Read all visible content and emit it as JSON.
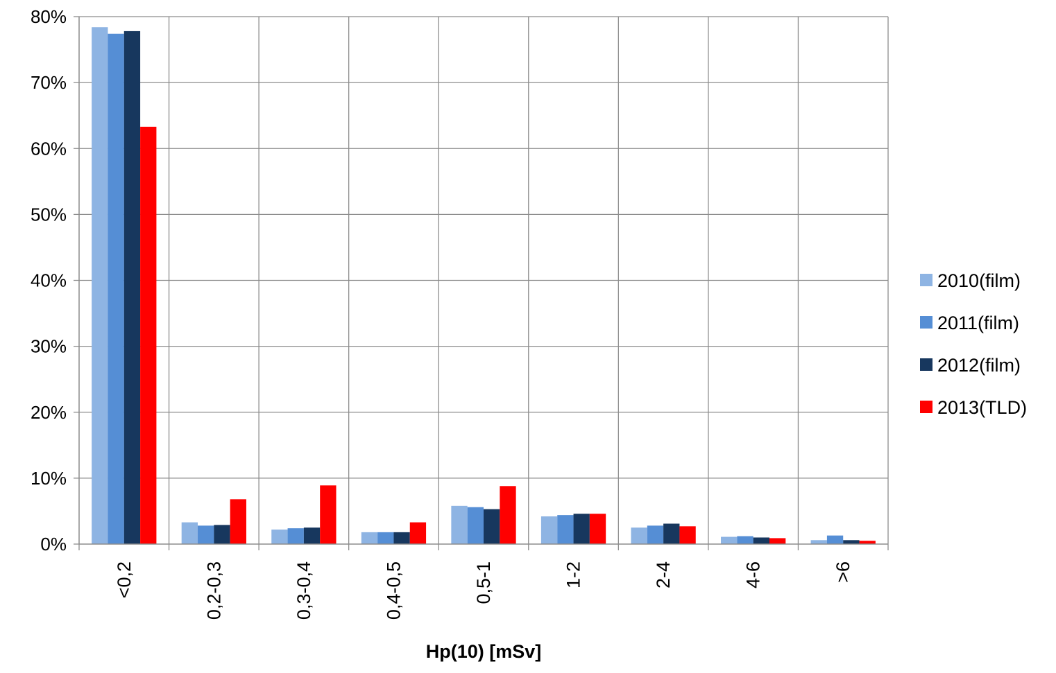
{
  "chart_data": {
    "type": "bar",
    "title": "",
    "xlabel": "Hp(10) [mSv]",
    "ylabel": "",
    "categories": [
      "<0,2",
      "0,2-0,3",
      "0,3-0,4",
      "0,4-0,5",
      "0,5-1",
      "1-2",
      "2-4",
      "4-6",
      ">6"
    ],
    "series": [
      {
        "name": "2010(film)",
        "color": "#8EB4E3",
        "values": [
          78.4,
          3.3,
          2.2,
          1.8,
          5.8,
          4.2,
          2.5,
          1.1,
          0.6
        ]
      },
      {
        "name": "2011(film)",
        "color": "#558ED5",
        "values": [
          77.4,
          2.8,
          2.4,
          1.8,
          5.6,
          4.4,
          2.8,
          1.2,
          1.3
        ]
      },
      {
        "name": "2012(film)",
        "color": "#17375E",
        "values": [
          77.8,
          2.9,
          2.5,
          1.8,
          5.3,
          4.6,
          3.1,
          1.0,
          0.6
        ]
      },
      {
        "name": "2013(TLD)",
        "color": "#FF0000",
        "values": [
          63.3,
          6.8,
          8.9,
          3.3,
          8.8,
          4.6,
          2.7,
          0.9,
          0.5
        ]
      }
    ],
    "ylim": [
      0,
      80
    ],
    "yticks": [
      "0%",
      "10%",
      "20%",
      "30%",
      "40%",
      "50%",
      "60%",
      "70%",
      "80%"
    ],
    "grid": true,
    "legend_position": "right"
  }
}
